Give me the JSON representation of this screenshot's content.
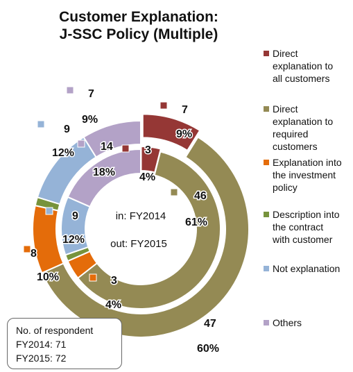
{
  "title_lines": [
    "Customer Explanation:",
    "J-SSC Policy (Multiple)"
  ],
  "center_labels": {
    "inner": "in:  FY2014",
    "outer": "out: FY2015"
  },
  "respondent_box": {
    "heading": "No. of respondent",
    "fy2014": "FY2014: 71",
    "fy2015": "FY2015: 72"
  },
  "chart_data": {
    "type": "pie",
    "subtype": "nested-donut",
    "title": "Customer Explanation: J-SSC Policy (Multiple)",
    "legend_position": "right",
    "categories": [
      {
        "label": "Direct\nexplanation to\nall customers",
        "color": "#953735"
      },
      {
        "label": "Direct\nexplanation to\nrequired\ncustomers",
        "color": "#948a54"
      },
      {
        "label": "Explanation into\nthe investment\npolicy",
        "color": "#e46c0a"
      },
      {
        "label": "Description into\nthe contract\nwith customer",
        "color": "#77933c"
      },
      {
        "label": "Not explanation",
        "color": "#95b3d7"
      },
      {
        "label": "Others",
        "color": "#b3a2c7"
      }
    ],
    "series": [
      {
        "name": "FY2014",
        "ring": "inner",
        "counts": [
          3,
          46,
          3,
          1,
          9,
          14
        ],
        "count_labels": [
          "3",
          "46",
          "3",
          "",
          "9",
          "14"
        ],
        "percent_labels": [
          "4%",
          "61%",
          "4%",
          "",
          "12%",
          "18%"
        ]
      },
      {
        "name": "FY2015",
        "ring": "outer",
        "counts": [
          7,
          47,
          8,
          1,
          9,
          7
        ],
        "count_labels": [
          "7",
          "47",
          "8",
          "",
          "9",
          "7"
        ],
        "percent_labels": [
          "9%",
          "60%",
          "10%",
          "",
          "12%",
          "9%"
        ]
      }
    ]
  }
}
